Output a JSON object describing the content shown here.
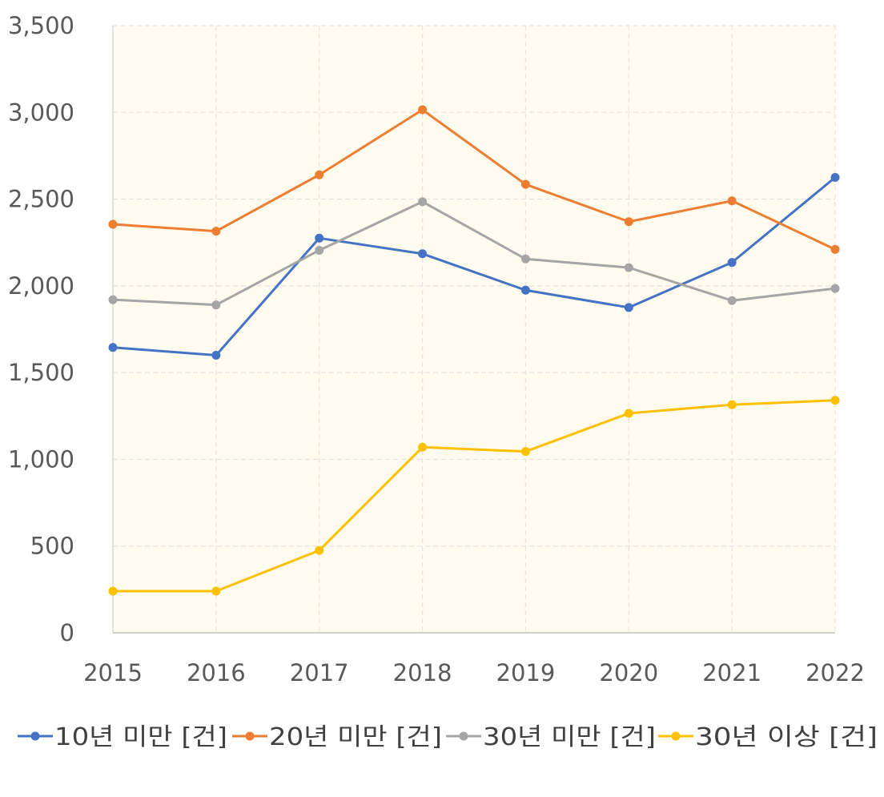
{
  "chart_data": {
    "type": "line",
    "title": "",
    "xlabel": "",
    "ylabel": "",
    "x": [
      "2015",
      "2016",
      "2017",
      "2018",
      "2019",
      "2020",
      "2021",
      "2022"
    ],
    "ylim": [
      0,
      3500
    ],
    "yticks": [
      0,
      500,
      1000,
      1500,
      2000,
      2500,
      3000,
      3500
    ],
    "ytick_labels": [
      "0",
      "500",
      "1,000",
      "1,500",
      "2,000",
      "2,500",
      "3,000",
      "3,500"
    ],
    "grid": true,
    "plot_background": "#FFFBEE",
    "legend_position": "bottom",
    "series": [
      {
        "name": "10년 미만 [건]",
        "color": "#4472C4",
        "values": [
          1645,
          1600,
          2275,
          2185,
          1975,
          1875,
          2135,
          2625
        ]
      },
      {
        "name": "20년 미만 [건]",
        "color": "#ED7D31",
        "values": [
          2355,
          2315,
          2640,
          3015,
          2585,
          2370,
          2490,
          2210
        ]
      },
      {
        "name": "30년 미만 [건]",
        "color": "#A5A5A5",
        "values": [
          1920,
          1890,
          2205,
          2485,
          2155,
          2105,
          1915,
          1985
        ]
      },
      {
        "name": "30년 이상 [건]",
        "color": "#FFC000",
        "values": [
          240,
          240,
          475,
          1070,
          1045,
          1265,
          1315,
          1340
        ]
      }
    ]
  }
}
